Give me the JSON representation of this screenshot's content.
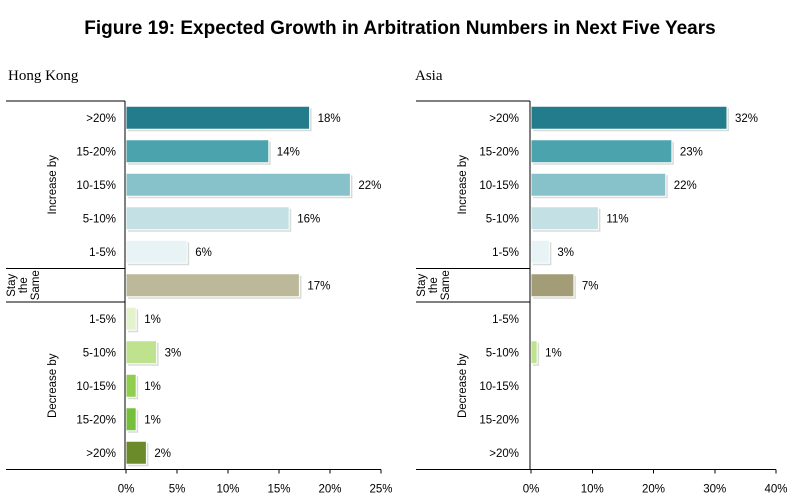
{
  "figure_title": "Figure 19: Expected Growth in Arbitration Numbers in Next Five Years",
  "chart_data": [
    {
      "type": "bar",
      "orientation": "horizontal",
      "title": "Hong Kong",
      "xlim": [
        0,
        25
      ],
      "xticks": [
        "0%",
        "5%",
        "10%",
        "15%",
        "20%",
        "25%"
      ],
      "groups": [
        {
          "name": "Increase by",
          "categories": [
            ">20%",
            "15-20%",
            "10-15%",
            "5-10%",
            "1-5%"
          ]
        },
        {
          "name": "Stay the Same",
          "categories": [
            ""
          ]
        },
        {
          "name": "Decrease by",
          "categories": [
            "1-5%",
            "5-10%",
            "10-15%",
            "15-20%",
            ">20%"
          ]
        }
      ],
      "values": [
        18,
        14,
        22,
        16,
        6,
        17,
        1,
        3,
        1,
        1,
        2
      ],
      "labels": [
        "18%",
        "14%",
        "22%",
        "16%",
        "6%",
        "17%",
        "1%",
        "3%",
        "1%",
        "1%",
        "2%"
      ]
    },
    {
      "type": "bar",
      "orientation": "horizontal",
      "title": "Asia",
      "xlim": [
        0,
        40
      ],
      "xticks": [
        "0%",
        "10%",
        "20%",
        "30%",
        "40%"
      ],
      "groups": [
        {
          "name": "Increase by",
          "categories": [
            ">20%",
            "15-20%",
            "10-15%",
            "5-10%",
            "1-5%"
          ]
        },
        {
          "name": "Stay the Same",
          "categories": [
            ""
          ]
        },
        {
          "name": "Decrease by",
          "categories": [
            "1-5%",
            "5-10%",
            "10-15%",
            "15-20%",
            ">20%"
          ]
        }
      ],
      "values": [
        32,
        23,
        22,
        11,
        3,
        7,
        0,
        1,
        0,
        0,
        0
      ],
      "labels": [
        "32%",
        "23%",
        "22%",
        "11%",
        "3%",
        "7%",
        "",
        "1%",
        "",
        "",
        ""
      ]
    }
  ],
  "colors": {
    "increase": [
      "#237c8c",
      "#4ba3ad",
      "#87c2ca",
      "#c3e1e5",
      "#e8f3f5"
    ],
    "same_hk": "#bcb89a",
    "same_asia": "#a29d76",
    "decrease": [
      "#e4f3cc",
      "#bee28e",
      "#8fce4e",
      "#74c03c",
      "#6b8a2a"
    ]
  }
}
